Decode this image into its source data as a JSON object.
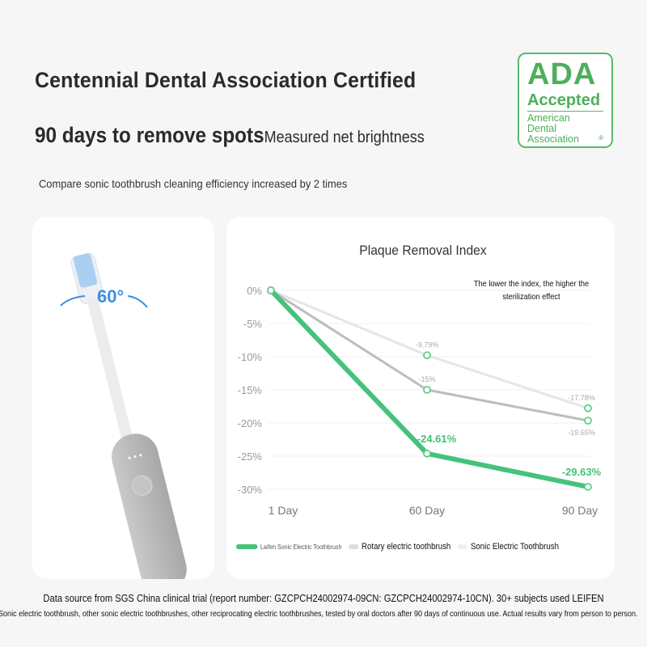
{
  "header": {
    "title": "Centennial Dental Association Certified",
    "subtitle_main": "90 days to remove spots",
    "subtitle_small": "Measured net brightness",
    "tagline": "Compare sonic toothbrush cleaning efficiency increased by 2 times"
  },
  "ada_badge": {
    "big": "ADA",
    "accepted": "Accepted",
    "org_lines": [
      "American",
      "Dental",
      "Association"
    ],
    "reg": "®",
    "color": "#4caf5a"
  },
  "product": {
    "angle_label": "60°"
  },
  "chart_data": {
    "type": "line",
    "title": "Plaque Removal Index",
    "annotation": "The lower the index, the higher the sterilization effect",
    "categories": [
      "1 Day",
      "60 Day",
      "90 Day"
    ],
    "yticks": [
      "0%",
      "-5%",
      "-10%",
      "-15%",
      "-20%",
      "-25%",
      "-30%"
    ],
    "ylim": [
      -30,
      0
    ],
    "grid": true,
    "legend_position": "bottom",
    "series": [
      {
        "name": "Laifen Sonic Electric Toothbrush",
        "values": [
          0,
          -24.61,
          -29.63
        ],
        "labels": [
          "",
          "-24.61%",
          "-29.63%"
        ],
        "color": "#46c27a"
      },
      {
        "name": "Rotary electric toothbrush",
        "values": [
          0,
          -15,
          -19.65
        ],
        "labels": [
          "",
          "-15%",
          "-19.65%"
        ],
        "color": "#bdbdbd"
      },
      {
        "name": "Sonic Electric Toothbrush",
        "values": [
          0,
          -9.79,
          -17.78
        ],
        "labels": [
          "",
          "-9.79%",
          "-17.78%"
        ],
        "color": "#e6e6e6"
      }
    ]
  },
  "footer": {
    "source": "Data source from SGS China clinical trial (report number: GZCPCH24002974-09CN: GZCPCH24002974-10CN). 30+ subjects used LEIFEN",
    "disclaimer": "Sonic electric toothbrush, other sonic electric toothbrushes, other reciprocating electric toothbrushes, tested by oral doctors after 90 days of continuous use. Actual results vary from person to person."
  }
}
